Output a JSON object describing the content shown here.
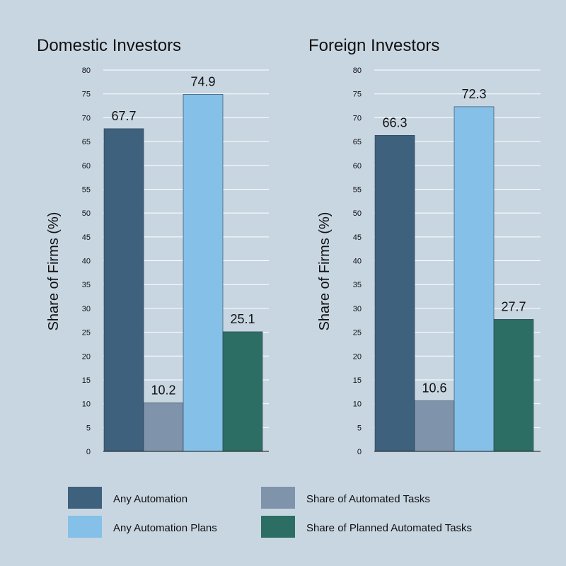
{
  "chart_data": [
    {
      "type": "bar",
      "title": "Domestic Investors",
      "ylabel": "Share of Firms (%)",
      "xlabel": "",
      "ylim": [
        0,
        80
      ],
      "yticks": [
        0,
        5,
        10,
        15,
        20,
        25,
        30,
        35,
        40,
        45,
        50,
        55,
        60,
        65,
        70,
        75,
        80
      ],
      "grid": true,
      "categories": [
        "Any Automation",
        "Share of Automated Tasks",
        "Any Automation Plans",
        "Share of Planned Automated Tasks"
      ],
      "values": [
        67.7,
        10.2,
        74.9,
        25.1
      ]
    },
    {
      "type": "bar",
      "title": "Foreign Investors",
      "ylabel": "Share of Firms (%)",
      "xlabel": "",
      "ylim": [
        0,
        80
      ],
      "yticks": [
        0,
        5,
        10,
        15,
        20,
        25,
        30,
        35,
        40,
        45,
        50,
        55,
        60,
        65,
        70,
        75,
        80
      ],
      "grid": true,
      "categories": [
        "Any Automation",
        "Share of Automated Tasks",
        "Any Automation Plans",
        "Share of Planned Automated Tasks"
      ],
      "values": [
        66.3,
        10.6,
        72.3,
        27.7
      ]
    }
  ],
  "legend": {
    "placement": "bottom",
    "items": [
      {
        "label": "Any Automation",
        "color": "#3e617d"
      },
      {
        "label": "Share of Automated Tasks",
        "color": "#7f94ab"
      },
      {
        "label": "Any Automation Plans",
        "color": "#84c0e8"
      },
      {
        "label": "Share of Planned Automated Tasks",
        "color": "#2d6e64"
      }
    ]
  }
}
